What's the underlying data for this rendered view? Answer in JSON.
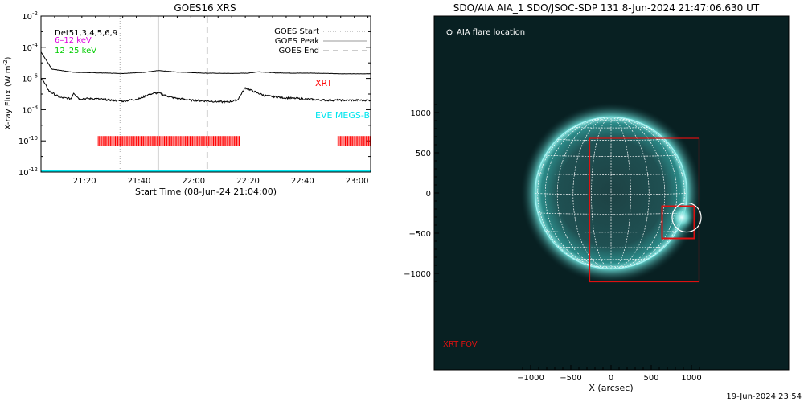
{
  "goes_chart": {
    "title": "GOES16 XRS",
    "xlabel": "Start Time (08-Jun-24 21:04:00)",
    "ylabel": "X-ray Flux (W m",
    "ylabel_sup": "-2",
    "ylabel_end": ")",
    "ytick_base": "10",
    "yticks": [
      {
        "exp": "-2",
        "value": 0.01
      },
      {
        "exp": "-4",
        "value": 0.0001
      },
      {
        "exp": "-6",
        "value": 1e-06
      },
      {
        "exp": "-8",
        "value": 1e-08
      },
      {
        "exp": "-10",
        "value": 1e-10
      },
      {
        "exp": "-12",
        "value": 1e-12
      }
    ],
    "xticks": [
      {
        "label": "21:20",
        "min": 16
      },
      {
        "label": "21:40",
        "min": 36
      },
      {
        "label": "22:00",
        "min": 56
      },
      {
        "label": "22:20",
        "min": 76
      },
      {
        "label": "22:40",
        "min": 96
      },
      {
        "label": "23:00",
        "min": 116
      }
    ],
    "legend_left": [
      {
        "label": "Det51,3,4,5,6,9",
        "color": "#000000"
      },
      {
        "label": "6–12 keV",
        "color": "#dd00dd"
      },
      {
        "label": "12–25 keV",
        "color": "#00cc00"
      }
    ],
    "legend_right": [
      {
        "label": "GOES Start",
        "style": "dotted",
        "color": "#999999"
      },
      {
        "label": "GOES Peak",
        "style": "solid",
        "color": "#999999"
      },
      {
        "label": "GOES End",
        "style": "dashed",
        "color": "#999999"
      }
    ],
    "xrt_label": "XRT",
    "eve_label": "EVE MEGS-B",
    "colors": {
      "xrt": "#ff0000",
      "eve": "#00e5ee",
      "markers": "#aaaaaa"
    },
    "chart_data": {
      "type": "line",
      "x_range_min": [
        0,
        121
      ],
      "y_range": [
        1e-12,
        0.01
      ],
      "y_scale": "log",
      "markers_min": {
        "goes_start": 29,
        "goes_peak": 43,
        "goes_end": 61
      },
      "xrt_intervals_min": [
        [
          21,
          73
        ],
        [
          109,
          121
        ]
      ],
      "xrt_level": 1e-10,
      "eve_level": 1e-12,
      "series": [
        {
          "name": "long",
          "color": "#000000",
          "x": [
            0,
            4,
            12,
            20,
            30,
            38,
            43,
            50,
            60,
            70,
            76,
            80,
            86,
            92,
            100,
            110,
            121
          ],
          "y": [
            5e-05,
            4e-06,
            2.5e-06,
            2.3e-06,
            2.1e-06,
            2.5e-06,
            3.2e-06,
            2.6e-06,
            2.2e-06,
            2.1e-06,
            2.2e-06,
            2.7e-06,
            2.3e-06,
            2.2e-06,
            2.2e-06,
            2e-06,
            2e-06
          ]
        },
        {
          "name": "short",
          "color": "#000000",
          "x": [
            0,
            3,
            7,
            11,
            12,
            14,
            20,
            30,
            36,
            40,
            43,
            48,
            55,
            62,
            68,
            72,
            75,
            78,
            82,
            88,
            95,
            105,
            112,
            121
          ],
          "y": [
            1.2e-06,
            1.5e-07,
            6e-08,
            5e-08,
            1.2e-07,
            5e-08,
            5e-08,
            3.5e-08,
            5e-08,
            1e-07,
            1.2e-07,
            6e-08,
            4e-08,
            3.5e-08,
            3e-08,
            4e-08,
            2.5e-07,
            1.5e-07,
            8e-08,
            6e-08,
            5e-08,
            4e-08,
            4e-08,
            4e-08
          ]
        }
      ]
    }
  },
  "aia_image": {
    "title": "SDO/AIA AIA_1 SDO/JSOC-SDP 131  8-Jun-2024 21:47:06.630 UT",
    "legend": "AIA flare location",
    "fov_label": "XRT FOV",
    "xlabel": "X (arcsec)",
    "xticks": [
      {
        "label": "−1000",
        "value": -1000
      },
      {
        "label": "−500",
        "value": -500
      },
      {
        "label": "0",
        "value": 0
      },
      {
        "label": "500",
        "value": 500
      },
      {
        "label": "1000",
        "value": 1000
      }
    ],
    "yticks": [
      {
        "label": "1000",
        "value": 1000
      },
      {
        "label": "500",
        "value": 500
      },
      {
        "label": "0",
        "value": 0
      },
      {
        "label": "−500",
        "value": -500
      },
      {
        "label": "−1000",
        "value": -1000
      }
    ],
    "fov_box": {
      "x": [
        -265,
        1095
      ],
      "y": [
        -1105,
        680
      ]
    },
    "zoom_box": {
      "x": [
        635,
        1035
      ],
      "y": [
        -565,
        -165
      ]
    },
    "flare": {
      "x": 880,
      "y": -305,
      "r": 95
    },
    "solar_radius": 945,
    "colors": {
      "sun": "#1a6b6b",
      "limb": "#9ff2f2",
      "grid": "#ffffff",
      "box": "#dd1111"
    }
  },
  "footer": {
    "timestamp": "19-Jun-2024 23:54"
  }
}
